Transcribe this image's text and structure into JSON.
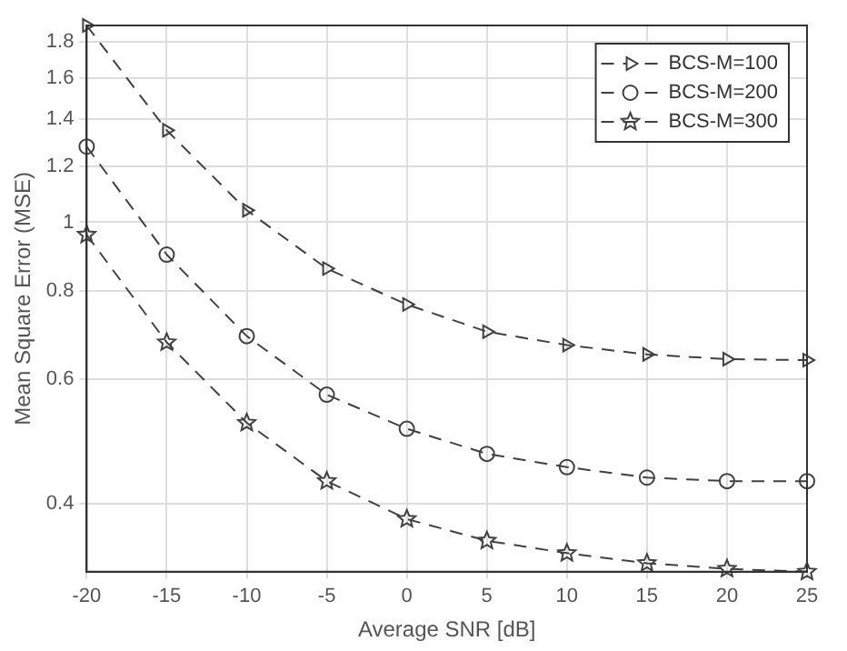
{
  "chart_data": {
    "type": "line",
    "xlabel": "Average SNR [dB]",
    "ylabel": "Mean Square Error (MSE)",
    "x": [
      -20,
      -15,
      -10,
      -5,
      0,
      5,
      10,
      15,
      20,
      25
    ],
    "series": [
      {
        "name": "BCS-M=100",
        "color": "#404040",
        "marker": "triangle",
        "values": [
          1.9,
          1.35,
          1.04,
          0.86,
          0.765,
          0.7,
          0.67,
          0.65,
          0.64,
          0.638
        ]
      },
      {
        "name": "BCS-M=200",
        "color": "#404040",
        "marker": "circle",
        "values": [
          1.28,
          0.9,
          0.69,
          0.57,
          0.51,
          0.47,
          0.45,
          0.435,
          0.43,
          0.43
        ]
      },
      {
        "name": "BCS-M=300",
        "color": "#404040",
        "marker": "star",
        "values": [
          0.96,
          0.676,
          0.52,
          0.43,
          0.38,
          0.354,
          0.34,
          0.329,
          0.323,
          0.32
        ]
      }
    ],
    "xlim": [
      -20,
      25
    ],
    "xticks": [
      -20,
      -15,
      -10,
      -5,
      0,
      5,
      10,
      15,
      20,
      25
    ],
    "ylim": [
      0.32,
      1.9
    ],
    "yticks": [
      0.4,
      0.6,
      0.8,
      1,
      1.2,
      1.4,
      1.6,
      1.8
    ],
    "log": "y",
    "grid": true,
    "legend": "top right",
    "line_style": "dashed"
  }
}
